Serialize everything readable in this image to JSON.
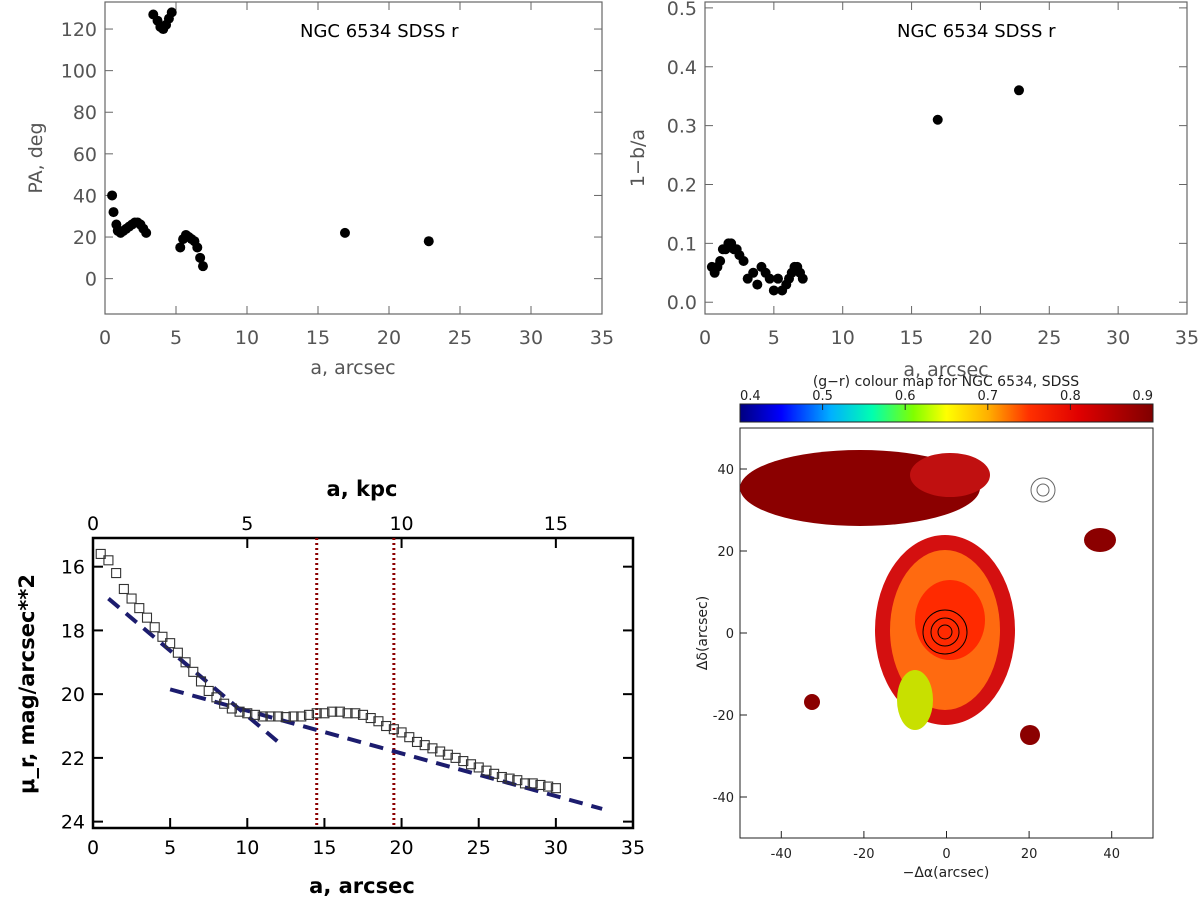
{
  "chart_data": [
    {
      "id": "pa",
      "type": "scatter",
      "annotation": "NGC 6534 SDSS r",
      "xlabel": "a, arcsec",
      "ylabel": "PA, deg",
      "xlim": [
        0,
        35
      ],
      "ylim": [
        -17,
        133
      ],
      "xticks": [
        0,
        5,
        10,
        15,
        20,
        25,
        30,
        35
      ],
      "yticks": [
        0,
        20,
        40,
        60,
        80,
        100,
        120
      ],
      "points": [
        [
          0.5,
          40
        ],
        [
          0.6,
          32
        ],
        [
          0.8,
          26
        ],
        [
          0.9,
          23
        ],
        [
          1.1,
          22
        ],
        [
          1.3,
          23
        ],
        [
          1.5,
          24
        ],
        [
          1.7,
          25
        ],
        [
          1.9,
          26
        ],
        [
          2.1,
          27
        ],
        [
          2.3,
          27
        ],
        [
          2.5,
          26
        ],
        [
          2.7,
          24
        ],
        [
          2.9,
          22
        ],
        [
          3.4,
          127
        ],
        [
          3.7,
          124
        ],
        [
          3.9,
          121
        ],
        [
          4.1,
          120
        ],
        [
          4.3,
          122
        ],
        [
          4.5,
          125
        ],
        [
          4.7,
          128
        ],
        [
          5.3,
          15
        ],
        [
          5.5,
          19
        ],
        [
          5.7,
          21
        ],
        [
          5.9,
          20
        ],
        [
          6.1,
          19
        ],
        [
          6.3,
          18
        ],
        [
          6.5,
          15
        ],
        [
          6.7,
          10
        ],
        [
          6.9,
          6
        ],
        [
          16.9,
          22
        ],
        [
          22.8,
          18
        ]
      ]
    },
    {
      "id": "ellipticity",
      "type": "scatter",
      "annotation": "NGC 6534 SDSS r",
      "xlabel": "a, arcsec",
      "ylabel": "1−b/a",
      "xlim": [
        0,
        35
      ],
      "ylim": [
        -0.02,
        0.51
      ],
      "xticks": [
        0,
        5,
        10,
        15,
        20,
        25,
        30,
        35
      ],
      "yticks": [
        0.0,
        0.1,
        0.2,
        0.3,
        0.4,
        0.5
      ],
      "yticklabels": [
        "0.0",
        "0.1",
        "0.2",
        "0.3",
        "0.4",
        "0.5"
      ],
      "points": [
        [
          0.5,
          0.06
        ],
        [
          0.7,
          0.05
        ],
        [
          0.9,
          0.06
        ],
        [
          1.1,
          0.07
        ],
        [
          1.3,
          0.09
        ],
        [
          1.5,
          0.09
        ],
        [
          1.7,
          0.1
        ],
        [
          1.9,
          0.1
        ],
        [
          2.1,
          0.09
        ],
        [
          2.3,
          0.09
        ],
        [
          2.5,
          0.08
        ],
        [
          2.8,
          0.07
        ],
        [
          3.1,
          0.04
        ],
        [
          3.5,
          0.05
        ],
        [
          3.8,
          0.03
        ],
        [
          4.1,
          0.06
        ],
        [
          4.4,
          0.05
        ],
        [
          4.7,
          0.04
        ],
        [
          5.0,
          0.02
        ],
        [
          5.3,
          0.04
        ],
        [
          5.6,
          0.02
        ],
        [
          5.9,
          0.03
        ],
        [
          6.1,
          0.04
        ],
        [
          6.3,
          0.05
        ],
        [
          6.5,
          0.06
        ],
        [
          6.7,
          0.06
        ],
        [
          6.9,
          0.05
        ],
        [
          7.1,
          0.04
        ],
        [
          16.9,
          0.31
        ],
        [
          22.8,
          0.36
        ]
      ]
    },
    {
      "id": "profile",
      "type": "scatter",
      "xlabel": "a, arcsec",
      "xlabel_top": "a, kpc",
      "ylabel": "μ_r, mag/arcsec**2",
      "xlim": [
        0,
        35
      ],
      "ylim": [
        24.2,
        15.1
      ],
      "xticks": [
        0,
        5,
        10,
        15,
        20,
        25,
        30,
        35
      ],
      "xticks_top": [
        0,
        5,
        10,
        15
      ],
      "xtop_scale_kpc_per_arcsec": 0.5,
      "yticks": [
        16,
        18,
        20,
        22,
        24
      ],
      "points": [
        [
          0.5,
          15.6
        ],
        [
          1.0,
          15.8
        ],
        [
          1.5,
          16.2
        ],
        [
          2.0,
          16.7
        ],
        [
          2.5,
          17.0
        ],
        [
          3.0,
          17.3
        ],
        [
          3.5,
          17.6
        ],
        [
          4.0,
          17.9
        ],
        [
          4.5,
          18.2
        ],
        [
          5.0,
          18.4
        ],
        [
          5.5,
          18.7
        ],
        [
          6.0,
          19.0
        ],
        [
          6.5,
          19.3
        ],
        [
          7.0,
          19.6
        ],
        [
          7.5,
          19.9
        ],
        [
          8.0,
          20.1
        ],
        [
          8.5,
          20.3
        ],
        [
          9.0,
          20.45
        ],
        [
          9.5,
          20.55
        ],
        [
          10.0,
          20.6
        ],
        [
          10.5,
          20.65
        ],
        [
          11.0,
          20.7
        ],
        [
          11.5,
          20.7
        ],
        [
          12.0,
          20.7
        ],
        [
          12.5,
          20.72
        ],
        [
          13.0,
          20.7
        ],
        [
          13.5,
          20.7
        ],
        [
          14.0,
          20.65
        ],
        [
          14.5,
          20.6
        ],
        [
          15.0,
          20.6
        ],
        [
          15.5,
          20.55
        ],
        [
          16.0,
          20.55
        ],
        [
          16.5,
          20.6
        ],
        [
          17.0,
          20.6
        ],
        [
          17.5,
          20.65
        ],
        [
          18.0,
          20.75
        ],
        [
          18.5,
          20.85
        ],
        [
          19.0,
          21.0
        ],
        [
          19.5,
          21.1
        ],
        [
          20.0,
          21.2
        ],
        [
          20.5,
          21.35
        ],
        [
          21.0,
          21.5
        ],
        [
          21.5,
          21.6
        ],
        [
          22.0,
          21.7
        ],
        [
          22.5,
          21.8
        ],
        [
          23.0,
          21.9
        ],
        [
          23.5,
          22.0
        ],
        [
          24.0,
          22.1
        ],
        [
          24.5,
          22.2
        ],
        [
          25.0,
          22.3
        ],
        [
          25.5,
          22.4
        ],
        [
          26.0,
          22.5
        ],
        [
          26.5,
          22.6
        ],
        [
          27.0,
          22.65
        ],
        [
          27.5,
          22.7
        ],
        [
          28.0,
          22.8
        ],
        [
          28.5,
          22.8
        ],
        [
          29.0,
          22.85
        ],
        [
          29.5,
          22.9
        ],
        [
          30.0,
          22.95
        ]
      ],
      "fit_lines": [
        {
          "x": [
            1.0,
            12.0
          ],
          "y": [
            17.0,
            21.5
          ]
        },
        {
          "x": [
            5.0,
            33.0
          ],
          "y": [
            19.85,
            23.6
          ]
        }
      ],
      "vlines": [
        14.5,
        19.5
      ]
    },
    {
      "id": "colour-map",
      "type": "heatmap",
      "title": "(g−r) colour map for NGC 6534, SDSS",
      "xlabel": "−Δα(arcsec)",
      "ylabel": "Δδ(arcsec)",
      "xlim": [
        -50,
        50
      ],
      "ylim": [
        -50,
        50
      ],
      "xticks": [
        -40,
        -20,
        0,
        20,
        40
      ],
      "yticks": [
        -40,
        -20,
        0,
        20,
        40
      ],
      "colorbar": {
        "range": [
          0.4,
          0.9
        ],
        "ticks": [
          0.4,
          0.5,
          0.6,
          0.7,
          0.8,
          0.9
        ],
        "ticklabels": [
          "0.4",
          "0.5",
          "0.6",
          "0.7",
          "0.8",
          "0.9"
        ]
      }
    }
  ]
}
